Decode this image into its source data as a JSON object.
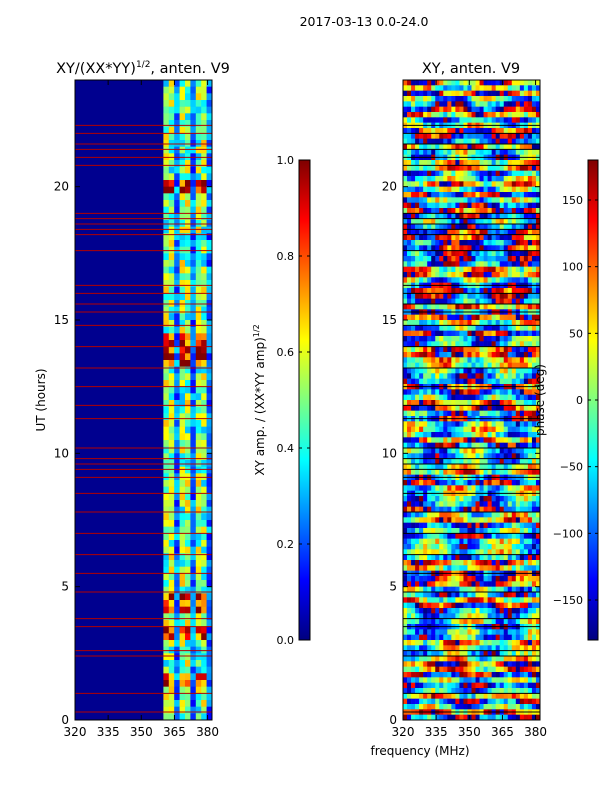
{
  "suptitle": "2017-03-13 0.0-24.0",
  "chart_data": [
    {
      "type": "heatmap",
      "title": "XY/(XX*YY)",
      "title_exponent": "1/2",
      "title_suffix": ", anten. V9",
      "ylabel": "UT (hours)",
      "xlabel": "",
      "xlim": [
        320,
        382
      ],
      "ylim": [
        0,
        24
      ],
      "xticks": [
        320,
        335,
        350,
        365,
        380
      ],
      "yticks": [
        0,
        5,
        10,
        15,
        20
      ],
      "colormap": "jet",
      "background_color": "#00008f",
      "flag_color": "#b30000",
      "bright_band_mhz": [
        360,
        382
      ],
      "bright_hours": [
        1.5,
        3.2,
        4.2,
        4.5,
        13.6,
        14.1,
        20.0
      ],
      "flagged_hours": [
        0.3,
        1.0,
        2.4,
        2.6,
        3.5,
        3.8,
        4.8,
        5.5,
        6.2,
        7.0,
        7.8,
        8.5,
        9.1,
        9.4,
        9.6,
        9.8,
        10.2,
        11.3,
        11.8,
        12.5,
        13.2,
        14.0,
        14.8,
        15.3,
        15.6,
        16.0,
        16.3,
        17.6,
        18.2,
        18.4,
        18.6,
        18.8,
        19.0,
        20.8,
        21.1,
        21.4,
        21.6,
        22.0,
        22.3
      ],
      "colorbar": {
        "label": "XY amp. / (XX*YY amp)",
        "label_exponent": "1/2",
        "range": [
          0.0,
          1.0
        ],
        "ticks": [
          0.0,
          0.2,
          0.4,
          0.6,
          0.8,
          1.0
        ],
        "tick_labels": [
          "0.0",
          "0.2",
          "0.4",
          "0.6",
          "0.8",
          "1.0"
        ]
      }
    },
    {
      "type": "heatmap",
      "title": "XY, anten. V9",
      "ylabel": "",
      "xlabel": "frequency (MHz)",
      "xlim": [
        320,
        382
      ],
      "ylim": [
        0,
        24
      ],
      "xticks": [
        320,
        335,
        350,
        365,
        380
      ],
      "yticks": [
        0,
        5,
        10,
        15,
        20
      ],
      "colormap": "jet",
      "flagged_hours": [
        0.3,
        1.0,
        2.4,
        2.6,
        3.5,
        3.8,
        4.8,
        5.5,
        6.2,
        7.0,
        7.8,
        8.5,
        9.1,
        9.4,
        9.6,
        9.8,
        10.2,
        11.3,
        11.8,
        12.5,
        13.2,
        14.0,
        14.8,
        15.3,
        15.6,
        16.0,
        16.3,
        17.6,
        18.2,
        18.4,
        18.6,
        18.8,
        19.0,
        20.8,
        21.1,
        21.4,
        21.6,
        22.0,
        22.3
      ],
      "colorbar": {
        "label": "phase (deg)",
        "range": [
          -180,
          180
        ],
        "ticks": [
          -150,
          -100,
          -50,
          0,
          50,
          100,
          150
        ],
        "tick_labels": [
          "−150",
          "−100",
          "−50",
          "0",
          "50",
          "100",
          "150"
        ]
      }
    }
  ]
}
